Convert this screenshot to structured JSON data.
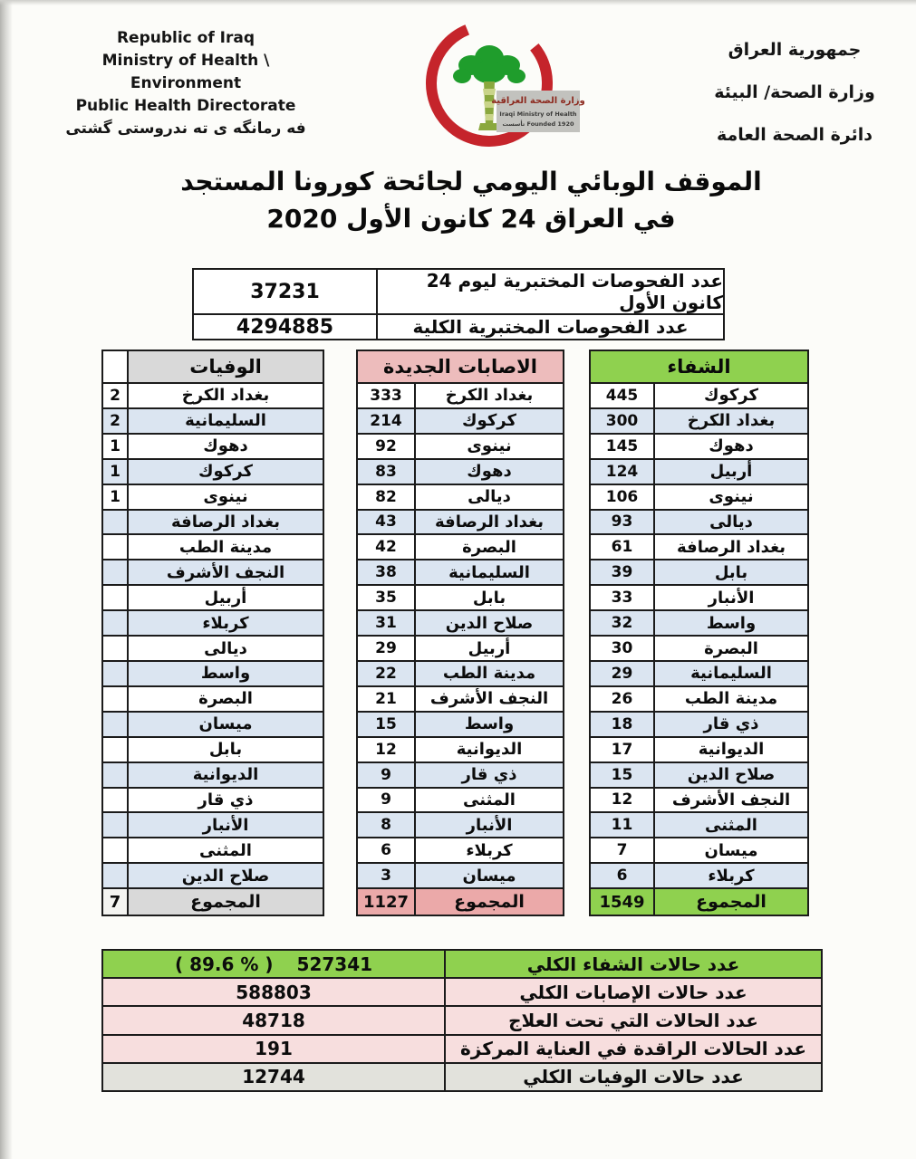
{
  "colors": {
    "alt_row": "#dbe5f1",
    "border": "#1b1b1b",
    "crescent_red": "#c5242b",
    "palm_green": "#1f9d2c",
    "banner_gray": "#c2c2be"
  },
  "header_left": {
    "line1": "Republic of Iraq",
    "line2": "Ministry of Health \\ Environment",
    "line3": "Public Health Directorate",
    "line4": "فه رمانگه ی ته ندروستی گشتی"
  },
  "header_right": {
    "line1": "جمهورية العراق",
    "line2": "وزارة الصحة/ البيئة",
    "line3": "دائرة الصحة العامة"
  },
  "logo": {
    "arabic_name": "وزارة الصحة العراقية",
    "english_name": "Iraqi Ministry of Health",
    "founded": "تأسست  Founded 1920"
  },
  "title": {
    "line1": "الموقف الوبائي اليومي لجائحة كورونا المستجد",
    "line2": "في العراق  24  كانون الأول 2020"
  },
  "tests_table": {
    "rows": [
      {
        "label": "عدد الفحوصات المختبرية  ليوم 24 كانون الأول",
        "value": "37231"
      },
      {
        "label": "عدد الفحوصات المختبرية الكلية",
        "value": "4294885"
      }
    ]
  },
  "gov_tables": {
    "deaths": {
      "title": "الوفيات",
      "header_bg": "#d9d9d9",
      "total_bg": "#d9d9d9",
      "total_value_bg": "#f4f4f1",
      "total_label": "المجموع",
      "total_value": "7",
      "rows": [
        {
          "name": "بغداد الكرخ",
          "value": "2"
        },
        {
          "name": "السليمانية",
          "value": "2"
        },
        {
          "name": "دهوك",
          "value": "1"
        },
        {
          "name": "كركوك",
          "value": "1"
        },
        {
          "name": "نينوى",
          "value": "1"
        },
        {
          "name": "بغداد الرصافة",
          "value": ""
        },
        {
          "name": "مدينة الطب",
          "value": ""
        },
        {
          "name": "النجف الأشرف",
          "value": ""
        },
        {
          "name": "أربيل",
          "value": ""
        },
        {
          "name": "كربلاء",
          "value": ""
        },
        {
          "name": "ديالى",
          "value": ""
        },
        {
          "name": "واسط",
          "value": ""
        },
        {
          "name": "البصرة",
          "value": ""
        },
        {
          "name": "ميسان",
          "value": ""
        },
        {
          "name": "بابل",
          "value": ""
        },
        {
          "name": "الديوانية",
          "value": ""
        },
        {
          "name": "ذي قار",
          "value": ""
        },
        {
          "name": "الأنبار",
          "value": ""
        },
        {
          "name": "المثنى",
          "value": ""
        },
        {
          "name": "صلاح الدين",
          "value": ""
        }
      ]
    },
    "new_cases": {
      "title": "الاصابات الجديدة",
      "header_bg": "#edbcbc",
      "total_bg": "#eba9a9",
      "total_value_bg": "#eba9a9",
      "total_label": "المجموع",
      "total_value": "1127",
      "rows": [
        {
          "name": "بغداد الكرخ",
          "value": "333"
        },
        {
          "name": "كركوك",
          "value": "214"
        },
        {
          "name": "نينوى",
          "value": "92"
        },
        {
          "name": "دهوك",
          "value": "83"
        },
        {
          "name": "ديالى",
          "value": "82"
        },
        {
          "name": "بغداد الرصافة",
          "value": "43"
        },
        {
          "name": "البصرة",
          "value": "42"
        },
        {
          "name": "السليمانية",
          "value": "38"
        },
        {
          "name": "بابل",
          "value": "35"
        },
        {
          "name": "صلاح الدين",
          "value": "31"
        },
        {
          "name": "أربيل",
          "value": "29"
        },
        {
          "name": "مدينة الطب",
          "value": "22"
        },
        {
          "name": "النجف الأشرف",
          "value": "21"
        },
        {
          "name": "واسط",
          "value": "15"
        },
        {
          "name": "الديوانية",
          "value": "12"
        },
        {
          "name": "ذي قار",
          "value": "9"
        },
        {
          "name": "المثنى",
          "value": "9"
        },
        {
          "name": "الأنبار",
          "value": "8"
        },
        {
          "name": "كربلاء",
          "value": "6"
        },
        {
          "name": "ميسان",
          "value": "3"
        }
      ]
    },
    "recoveries": {
      "title": "الشفاء",
      "header_bg": "#8fd14f",
      "total_bg": "#8fd14f",
      "total_value_bg": "#8fd14f",
      "total_label": "المجموع",
      "total_value": "1549",
      "rows": [
        {
          "name": "كركوك",
          "value": "445"
        },
        {
          "name": "بغداد الكرخ",
          "value": "300"
        },
        {
          "name": "دهوك",
          "value": "145"
        },
        {
          "name": "أربيل",
          "value": "124"
        },
        {
          "name": "نينوى",
          "value": "106"
        },
        {
          "name": "ديالى",
          "value": "93"
        },
        {
          "name": "بغداد الرصافة",
          "value": "61"
        },
        {
          "name": "بابل",
          "value": "39"
        },
        {
          "name": "الأنبار",
          "value": "33"
        },
        {
          "name": "واسط",
          "value": "32"
        },
        {
          "name": "البصرة",
          "value": "30"
        },
        {
          "name": "السليمانية",
          "value": "29"
        },
        {
          "name": "مدينة الطب",
          "value": "26"
        },
        {
          "name": "ذي قار",
          "value": "18"
        },
        {
          "name": "الديوانية",
          "value": "17"
        },
        {
          "name": "صلاح الدين",
          "value": "15"
        },
        {
          "name": "النجف الأشرف",
          "value": "12"
        },
        {
          "name": "المثنى",
          "value": "11"
        },
        {
          "name": "ميسان",
          "value": "7"
        },
        {
          "name": "كربلاء",
          "value": "6"
        }
      ]
    }
  },
  "summary_table": {
    "rows": [
      {
        "label": "عدد حالات الشفاء الكلي",
        "value": "527341",
        "extra": "( 89.6 % )",
        "bg": "#8fd14f"
      },
      {
        "label": "عدد حالات الإصابات الكلي",
        "value": "588803",
        "extra": "",
        "bg": "#f7dede"
      },
      {
        "label": "عدد الحالات التي تحت العلاج",
        "value": "48718",
        "extra": "",
        "bg": "#f7dede"
      },
      {
        "label": "عدد الحالات الراقدة في العناية المركزة",
        "value": "191",
        "extra": "",
        "bg": "#f7dede"
      },
      {
        "label": "عدد حالات الوفيات الكلي",
        "value": "12744",
        "extra": "",
        "bg": "#e2e2dc"
      }
    ]
  }
}
